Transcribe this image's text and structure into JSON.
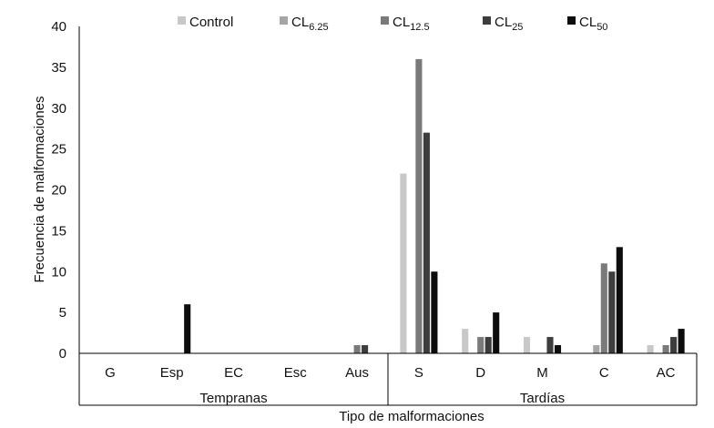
{
  "chart_data": {
    "type": "bar",
    "title": "",
    "xlabel": "Tipo de malformaciones",
    "ylabel": "Frecuencia de malformaciones",
    "ylim": [
      0,
      40
    ],
    "yticks": [
      0,
      5,
      10,
      15,
      20,
      25,
      30,
      35,
      40
    ],
    "grid": false,
    "legend_position": "top",
    "categories": [
      "G",
      "Esp",
      "EC",
      "Esc",
      "Aus",
      "S",
      "D",
      "M",
      "C",
      "AC"
    ],
    "groups": [
      {
        "label": "Tempranas",
        "categories": [
          "G",
          "Esp",
          "EC",
          "Esc",
          "Aus"
        ]
      },
      {
        "label": "Tardías",
        "categories": [
          "S",
          "D",
          "M",
          "C",
          "AC"
        ]
      }
    ],
    "series": [
      {
        "name": "Control",
        "base": "Control",
        "sub": "",
        "color": "#c8c8c8",
        "values": [
          0,
          0,
          0,
          0,
          0,
          22,
          3,
          2,
          0,
          1
        ]
      },
      {
        "name": "CL6.25",
        "base": "CL",
        "sub": "6.25",
        "color": "#a6a6a6",
        "values": [
          0,
          0,
          0,
          0,
          0,
          0,
          0,
          0,
          1,
          0
        ]
      },
      {
        "name": "CL12.5",
        "base": "CL",
        "sub": "12.5",
        "color": "#7a7a7a",
        "values": [
          0,
          0,
          0,
          0,
          1,
          36,
          2,
          0,
          11,
          1
        ]
      },
      {
        "name": "CL25",
        "base": "CL",
        "sub": "25",
        "color": "#3d3d3d",
        "values": [
          0,
          0,
          0,
          0,
          1,
          27,
          2,
          2,
          10,
          2
        ]
      },
      {
        "name": "CL50",
        "base": "CL",
        "sub": "50",
        "color": "#0d0d0d",
        "values": [
          0,
          6,
          0,
          0,
          0,
          10,
          5,
          1,
          13,
          3
        ]
      }
    ]
  }
}
